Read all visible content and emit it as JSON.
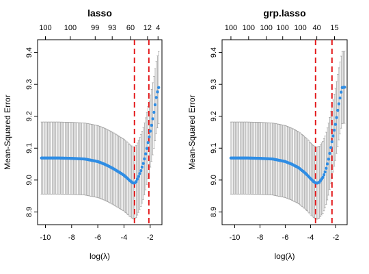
{
  "chart_data": [
    {
      "type": "scatter",
      "title": "lasso",
      "xlabel": "log(λ)",
      "ylabel": "Mean-Squared Error",
      "xlim": [
        -10.6,
        -1.1
      ],
      "ylim": [
        8.86,
        9.44
      ],
      "x_ticks": [
        -10,
        -8,
        -6,
        -4,
        -2
      ],
      "y_ticks": [
        8.9,
        9.0,
        9.1,
        9.2,
        9.3,
        9.4
      ],
      "top_axis_ticks": [
        {
          "x": -10.0,
          "label": "100"
        },
        {
          "x": -8.1,
          "label": "100"
        },
        {
          "x": -6.2,
          "label": "99"
        },
        {
          "x": -4.9,
          "label": "93"
        },
        {
          "x": -3.5,
          "label": "60"
        },
        {
          "x": -2.2,
          "label": "12"
        },
        {
          "x": -1.4,
          "label": "4"
        }
      ],
      "vlines": [
        -3.2,
        -2.1
      ],
      "grid": false,
      "series": [
        {
          "color": "#2f8de4",
          "points": [
            [
              -10.3,
              9.069
            ],
            [
              -9.0,
              9.069
            ],
            [
              -8.0,
              9.068
            ],
            [
              -7.0,
              9.066
            ],
            [
              -6.0,
              9.058
            ],
            [
              -5.5,
              9.05
            ],
            [
              -5.0,
              9.04
            ],
            [
              -4.5,
              9.028
            ],
            [
              -4.0,
              9.015
            ],
            [
              -3.6,
              9.0
            ],
            [
              -3.3,
              8.99
            ],
            [
              -3.1,
              8.992
            ],
            [
              -2.9,
              9.01
            ],
            [
              -2.7,
              9.03
            ],
            [
              -2.5,
              9.055
            ],
            [
              -2.3,
              9.09
            ],
            [
              -2.1,
              9.13
            ],
            [
              -1.9,
              9.17
            ],
            [
              -1.7,
              9.215
            ],
            [
              -1.55,
              9.255
            ],
            [
              -1.45,
              9.275
            ],
            [
              -1.35,
              9.29
            ]
          ],
          "se": 0.113
        }
      ]
    },
    {
      "type": "scatter",
      "title": "grp.lasso",
      "xlabel": "log(λ)",
      "ylabel": "Mean-Squared Error",
      "xlim": [
        -11.0,
        -1.1
      ],
      "ylim": [
        8.86,
        9.44
      ],
      "x_ticks": [
        -10,
        -8,
        -6,
        -4,
        -2
      ],
      "y_ticks": [
        8.9,
        9.0,
        9.1,
        9.2,
        9.3,
        9.4
      ],
      "top_axis_ticks": [
        {
          "x": -10.3,
          "label": "100"
        },
        {
          "x": -8.9,
          "label": "100"
        },
        {
          "x": -7.5,
          "label": "100"
        },
        {
          "x": -6.2,
          "label": "100"
        },
        {
          "x": -4.8,
          "label": "100"
        },
        {
          "x": -3.5,
          "label": "40"
        },
        {
          "x": -2.1,
          "label": "15"
        }
      ],
      "vlines": [
        -3.6,
        -2.3
      ],
      "grid": false,
      "series": [
        {
          "color": "#2f8de4",
          "points": [
            [
              -10.3,
              9.069
            ],
            [
              -9.0,
              9.069
            ],
            [
              -8.0,
              9.068
            ],
            [
              -7.0,
              9.066
            ],
            [
              -6.0,
              9.058
            ],
            [
              -5.5,
              9.05
            ],
            [
              -5.0,
              9.04
            ],
            [
              -4.5,
              9.025
            ],
            [
              -4.0,
              9.005
            ],
            [
              -3.7,
              8.993
            ],
            [
              -3.5,
              8.99
            ],
            [
              -3.3,
              8.993
            ],
            [
              -3.0,
              9.01
            ],
            [
              -2.8,
              9.03
            ],
            [
              -2.6,
              9.06
            ],
            [
              -2.4,
              9.1
            ],
            [
              -2.2,
              9.14
            ],
            [
              -2.0,
              9.18
            ],
            [
              -1.8,
              9.23
            ],
            [
              -1.6,
              9.27
            ],
            [
              -1.5,
              9.29
            ],
            [
              -1.3,
              9.291
            ]
          ],
          "se": 0.113
        }
      ]
    }
  ]
}
